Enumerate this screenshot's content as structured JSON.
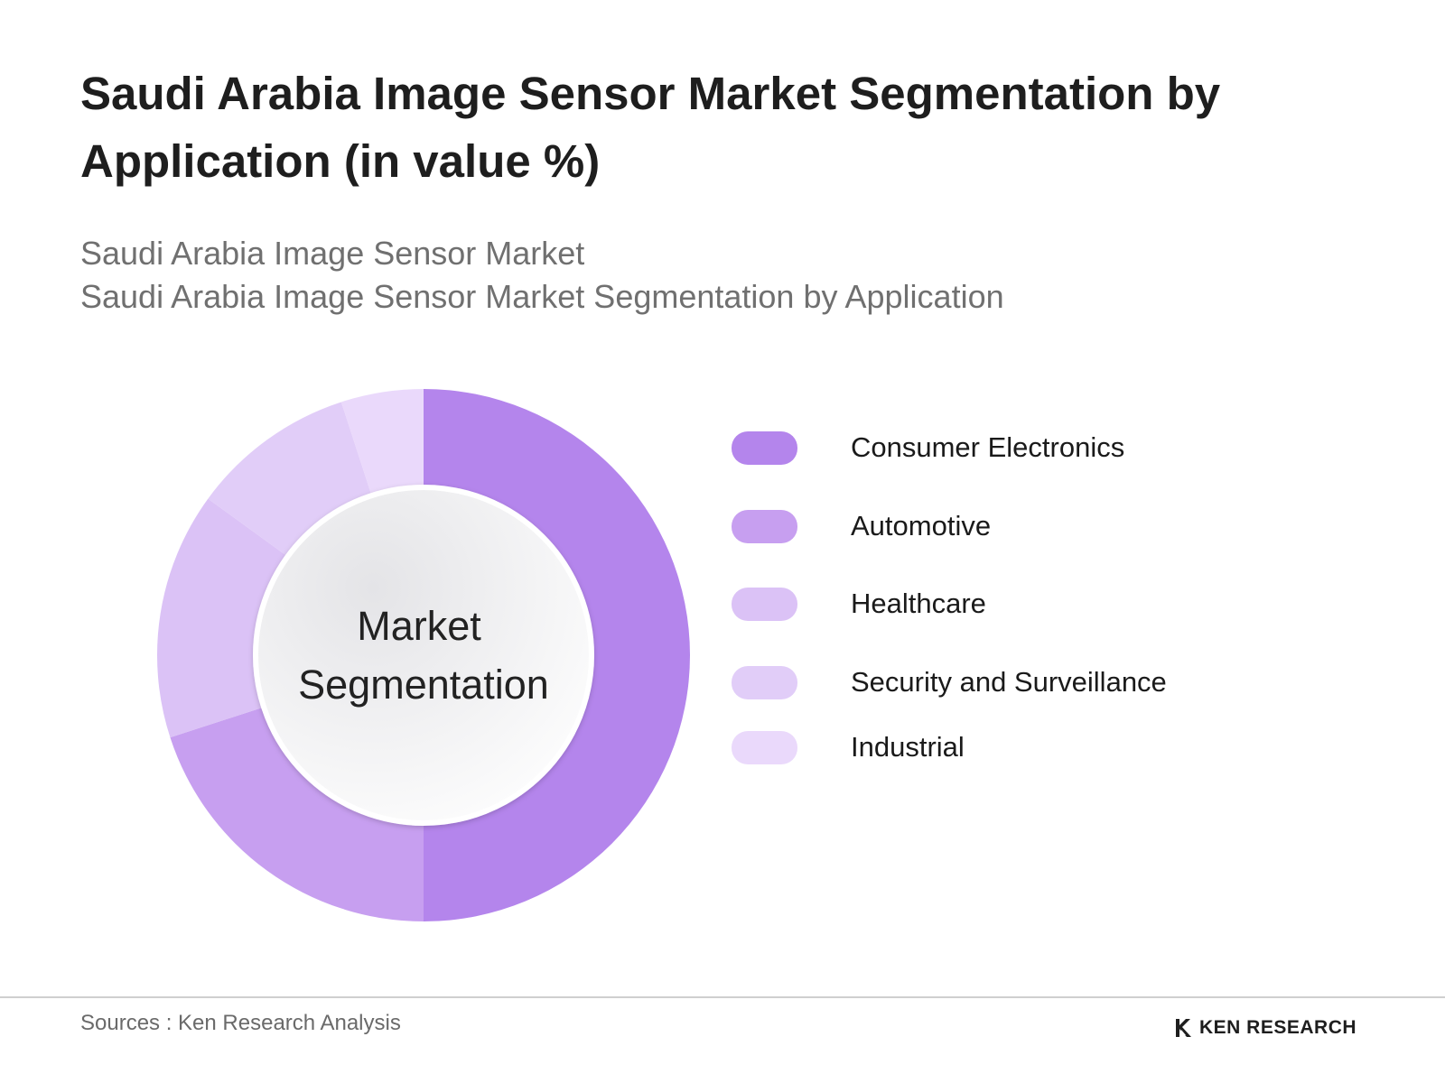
{
  "header": {
    "title": "Saudi Arabia Image Sensor Market Segmentation by Application (in value %)",
    "subtitle_line1": "Saudi Arabia Image Sensor Market",
    "subtitle_line2": "Saudi Arabia Image Sensor Market Segmentation by Application"
  },
  "chart_data": {
    "type": "pie",
    "variant": "donut",
    "title": "Saudi Arabia Image Sensor Market Segmentation by Application (in value %)",
    "center_label_line1": "Market",
    "center_label_line2": "Segmentation",
    "legend_position": "right",
    "categories": [
      "Consumer Electronics",
      "Automotive",
      "Healthcare",
      "Security and Surveillance",
      "Industrial"
    ],
    "values": [
      50,
      20,
      15,
      10,
      5
    ],
    "colors": [
      "#b485ec",
      "#c79ff0",
      "#dbc2f6",
      "#e1cdf8",
      "#ead9fb"
    ],
    "unit": "%"
  },
  "footer": {
    "sources": "Sources : Ken Research Analysis",
    "brand": "KEN RESEARCH",
    "brand_icon": "ken-research-logo-icon"
  }
}
